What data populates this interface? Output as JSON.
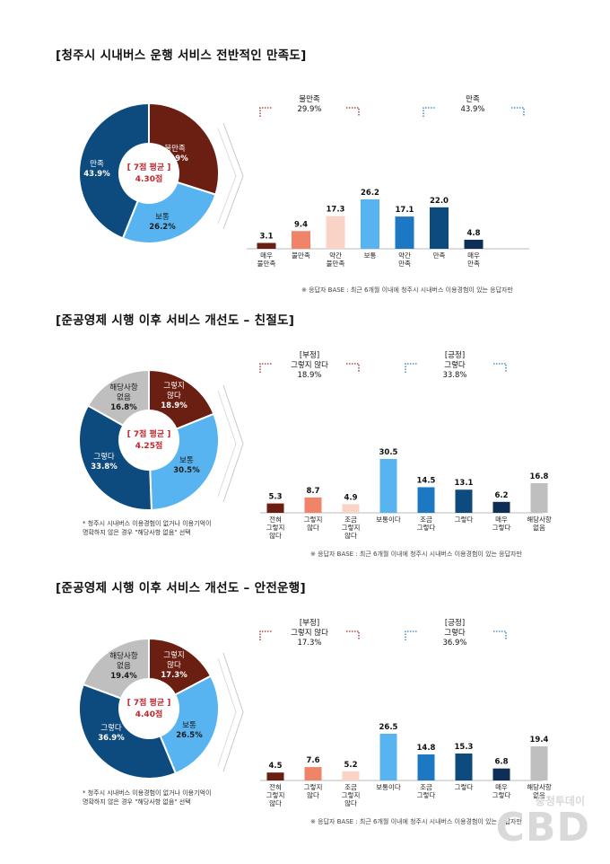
{
  "sections": [
    {
      "title": "[청주시 시내버스 운행 서비스 전반적인 만족도]",
      "center_label": "[ 7점 평균 ]",
      "center_value": "4.30점",
      "note": "※ 응답자 BASE : 최근 6개월 이내에 청주시 시내버스 이용경험이 있는 응답자만",
      "footnote": [],
      "groups": [
        {
          "lines": [
            "불만족",
            "29.9%"
          ]
        },
        {
          "lines": [
            "만족",
            "43.9%"
          ]
        }
      ]
    },
    {
      "title": "[준공영제 시행 이후 서비스 개선도 – 친절도]",
      "center_label": "[ 7점 평균 ]",
      "center_value": "4.25점",
      "note": "※ 응답자 BASE : 최근 6개월 이내에 청주시 시내버스 이용경험이 있는 응답자만",
      "footnote": [
        "* 청주시 시내버스 이용경험이 없거나 이용기억이",
        "명확하지 않은 경우 \"해당사항 없음\" 선택"
      ],
      "groups": [
        {
          "lines": [
            "[부정]",
            "그렇지 않다",
            "18.9%"
          ]
        },
        {
          "lines": [
            "[긍정]",
            "그렇다",
            "33.8%"
          ]
        }
      ]
    },
    {
      "title": "[준공영제 시행 이후 서비스 개선도 – 안전운행]",
      "center_label": "[ 7점 평균 ]",
      "center_value": "4.40점",
      "note": "※ 응답자 BASE : 최근 6개월 이내에 청주시 시내버스 이용경험이 있는 응답자만",
      "footnote": [
        "* 청주시 시내버스 이용경험이 없거나 이용기억이",
        "명확하지 않은 경우 \"해당사항 없음\" 선택"
      ],
      "groups": [
        {
          "lines": [
            "[부정]",
            "그렇지 않다",
            "17.3%"
          ]
        },
        {
          "lines": [
            "[긍정]",
            "그렇다",
            "36.9%"
          ]
        }
      ]
    }
  ],
  "chart_data": [
    {
      "type": "pie",
      "slices": [
        {
          "lines": [
            "불만족",
            "29.9%"
          ],
          "value": 29.9,
          "color": "#6b1e12"
        },
        {
          "lines": [
            "보통",
            "26.2%"
          ],
          "value": 26.2,
          "color": "#58b4f0"
        },
        {
          "lines": [
            "만족",
            "43.9%"
          ],
          "value": 43.9,
          "color": "#0d4a7d"
        }
      ]
    },
    {
      "type": "bar",
      "categories": [
        [
          "매우",
          "불만족"
        ],
        [
          "불만족"
        ],
        [
          "약간",
          "불만족"
        ],
        [
          "보통"
        ],
        [
          "약간",
          "만족"
        ],
        [
          "만족"
        ],
        [
          "매우",
          "만족"
        ]
      ],
      "values": [
        3.1,
        9.4,
        17.3,
        26.2,
        17.1,
        22.0,
        4.8
      ],
      "value_labels": [
        "3.1",
        "9.4",
        "17.3",
        "26.2",
        "17.1",
        "22.0",
        "4.8"
      ],
      "colors": [
        "#6b1e12",
        "#ef8468",
        "#f8d3c6",
        "#58b4f0",
        "#1d78c4",
        "#0d4a7d",
        "#0f2e55"
      ]
    },
    {
      "type": "pie",
      "slices": [
        {
          "lines": [
            "그렇지",
            "않다",
            "18.9%"
          ],
          "value": 18.9,
          "color": "#6b1e12"
        },
        {
          "lines": [
            "보통",
            "30.5%"
          ],
          "value": 30.5,
          "color": "#58b4f0"
        },
        {
          "lines": [
            "그렇다",
            "33.8%"
          ],
          "value": 33.8,
          "color": "#0d4a7d"
        },
        {
          "lines": [
            "해당사항",
            "없음",
            "16.8%"
          ],
          "value": 16.8,
          "color": "#bfbfbf"
        }
      ]
    },
    {
      "type": "bar",
      "categories": [
        [
          "전혀",
          "그렇지",
          "않다"
        ],
        [
          "그렇지",
          "않다"
        ],
        [
          "조금",
          "그렇지",
          "않다"
        ],
        [
          "보통이다"
        ],
        [
          "조금",
          "그렇다"
        ],
        [
          "그렇다"
        ],
        [
          "매우",
          "그렇다"
        ],
        [
          "해당사항",
          "없음"
        ]
      ],
      "values": [
        5.3,
        8.7,
        4.9,
        30.5,
        14.5,
        13.1,
        6.2,
        16.8
      ],
      "value_labels": [
        "5.3",
        "8.7",
        "4.9",
        "30.5",
        "14.5",
        "13.1",
        "6.2",
        "16.8"
      ],
      "colors": [
        "#6b1e12",
        "#ef8468",
        "#f8d3c6",
        "#58b4f0",
        "#1d78c4",
        "#0d4a7d",
        "#0f2e55",
        "#bfbfbf"
      ]
    },
    {
      "type": "pie",
      "slices": [
        {
          "lines": [
            "그렇지",
            "않다",
            "17.3%"
          ],
          "value": 17.3,
          "color": "#6b1e12"
        },
        {
          "lines": [
            "보통",
            "26.5%"
          ],
          "value": 26.5,
          "color": "#58b4f0"
        },
        {
          "lines": [
            "그렇다",
            "36.9%"
          ],
          "value": 36.9,
          "color": "#0d4a7d"
        },
        {
          "lines": [
            "해당사항",
            "없음",
            "19.4%"
          ],
          "value": 19.4,
          "color": "#bfbfbf"
        }
      ]
    },
    {
      "type": "bar",
      "categories": [
        [
          "전혀",
          "그렇지",
          "않다"
        ],
        [
          "그렇지",
          "않다"
        ],
        [
          "조금",
          "그렇지",
          "않다"
        ],
        [
          "보통이다"
        ],
        [
          "조금",
          "그렇다"
        ],
        [
          "그렇다"
        ],
        [
          "매우",
          "그렇다"
        ],
        [
          "해당사항",
          "없음"
        ]
      ],
      "values": [
        4.5,
        7.6,
        5.2,
        26.5,
        14.8,
        15.3,
        6.8,
        19.4
      ],
      "value_labels": [
        "4.5",
        "7.6",
        "5.2",
        "26.5",
        "14.8",
        "15.3",
        "6.8",
        "19.4"
      ],
      "colors": [
        "#6b1e12",
        "#ef8468",
        "#f8d3c6",
        "#58b4f0",
        "#1d78c4",
        "#0d4a7d",
        "#0f2e55",
        "#bfbfbf"
      ]
    }
  ],
  "watermark": {
    "sub": "충청투데이",
    "main": "CBD"
  }
}
